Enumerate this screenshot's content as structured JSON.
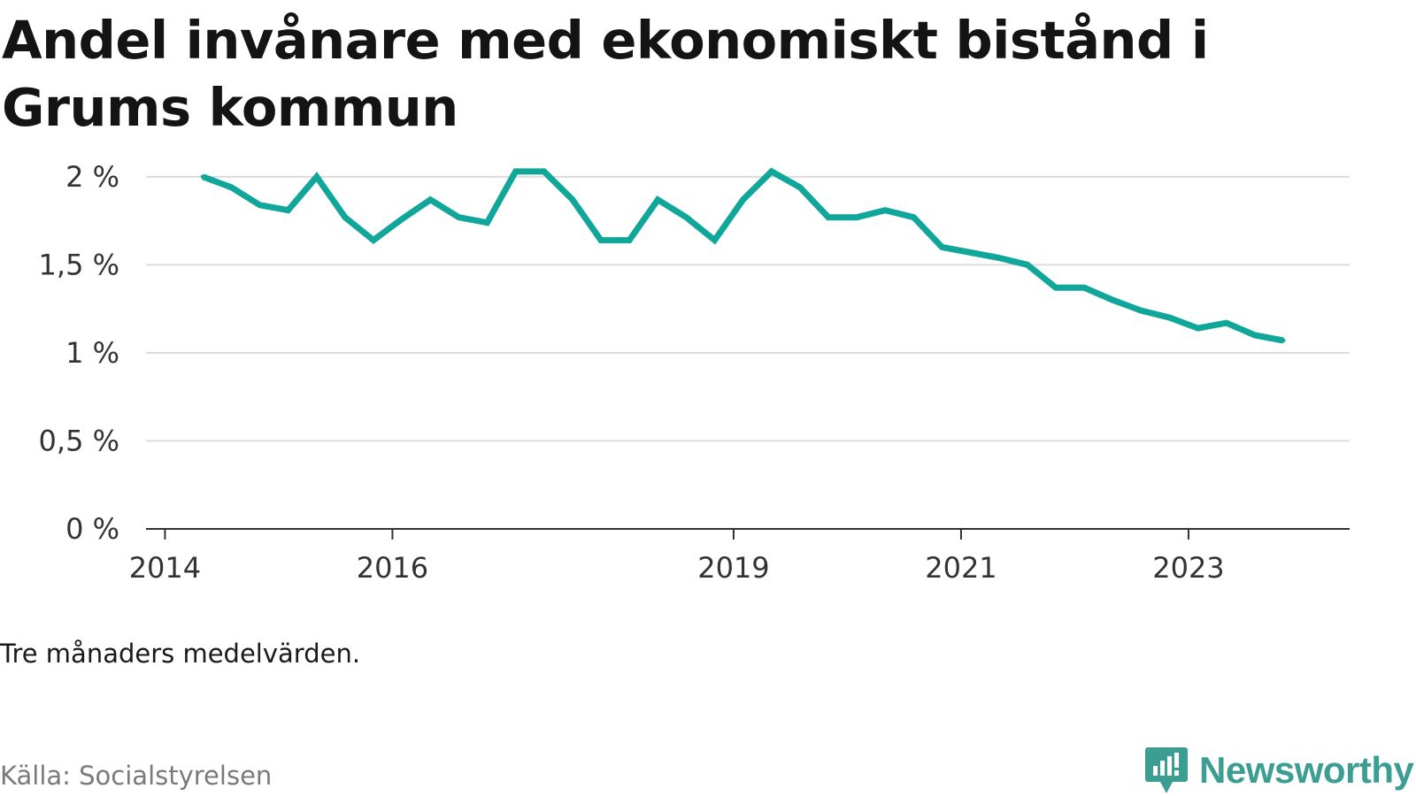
{
  "title": "Andel invånare med ekonomiskt bistånd i Grums kommun",
  "note": "Tre månaders medelvärden.",
  "source": "Källa: Socialstyrelsen",
  "brand": {
    "name": "Newsworthy",
    "color": "#3c9e92",
    "icon": "newsworthy-logo-icon"
  },
  "chart_data": {
    "type": "line",
    "series": [
      {
        "color": "#10a69a",
        "x": [
          "2014-05",
          "2014-08",
          "2014-11",
          "2015-02",
          "2015-05",
          "2015-08",
          "2015-11",
          "2016-02",
          "2016-05",
          "2016-08",
          "2016-11",
          "2017-02",
          "2017-05",
          "2017-08",
          "2017-11",
          "2018-02",
          "2018-05",
          "2018-08",
          "2018-11",
          "2019-02",
          "2019-05",
          "2019-08",
          "2019-11",
          "2020-02",
          "2020-05",
          "2020-08",
          "2020-11",
          "2021-02",
          "2021-05",
          "2021-08",
          "2021-11",
          "2022-02",
          "2022-05",
          "2022-08",
          "2022-11",
          "2023-02",
          "2023-05",
          "2023-08",
          "2023-11"
        ],
        "values": [
          2.0,
          1.94,
          1.84,
          1.81,
          2.0,
          1.77,
          1.64,
          1.76,
          1.87,
          1.77,
          1.74,
          2.03,
          2.03,
          1.87,
          1.64,
          1.64,
          1.87,
          1.77,
          1.64,
          1.87,
          2.03,
          1.94,
          1.77,
          1.77,
          1.81,
          1.77,
          1.6,
          1.57,
          1.54,
          1.5,
          1.37,
          1.37,
          1.3,
          1.24,
          1.2,
          1.14,
          1.17,
          1.1,
          1.07
        ]
      }
    ],
    "xticks": [
      "2014",
      "2016",
      "2019",
      "2021",
      "2023"
    ],
    "xlim": [
      "2013-11",
      "2024-06"
    ],
    "yticks": [
      0,
      0.5,
      1,
      1.5,
      2
    ],
    "ytick_labels": [
      "0 %",
      "0,5 %",
      "1 %",
      "1,5 %",
      "2 %"
    ],
    "ylim": [
      0,
      2.1
    ],
    "grid": true,
    "legend": "none"
  }
}
